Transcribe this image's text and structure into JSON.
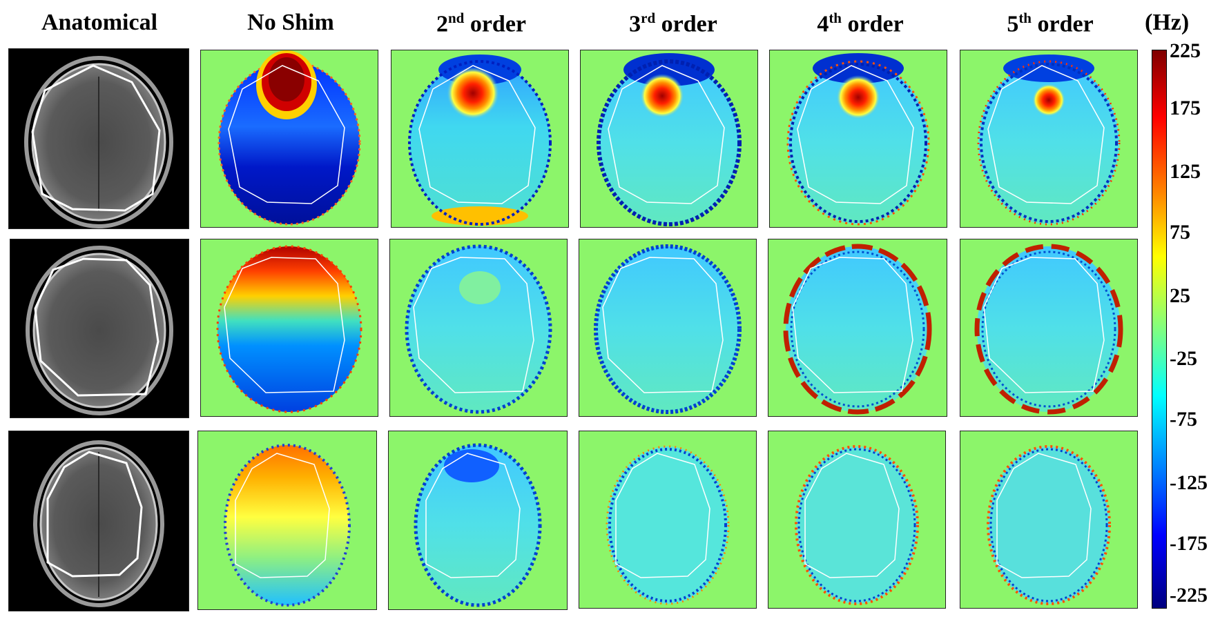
{
  "columns": [
    {
      "key": "anatomical",
      "title": "Anatomical",
      "sup": "",
      "after": ""
    },
    {
      "key": "no_shim",
      "title": "No Shim",
      "sup": "",
      "after": ""
    },
    {
      "key": "order2",
      "title": "2",
      "sup": "nd",
      "after": " order"
    },
    {
      "key": "order3",
      "title": "3",
      "sup": "rd",
      "after": " order"
    },
    {
      "key": "order4",
      "title": "4",
      "sup": "th",
      "after": " order"
    },
    {
      "key": "order5",
      "title": "5",
      "sup": "th",
      "after": " order"
    }
  ],
  "colorbar": {
    "unit": "(Hz)",
    "ticks": [
      "225",
      "175",
      "125",
      "75",
      "25",
      "-25",
      "-75",
      "-125",
      "-175",
      "-225"
    ],
    "colormap": [
      "#7f0000",
      "#ff0000",
      "#ff8000",
      "#ffff00",
      "#80ff80",
      "#00ffff",
      "#0080ff",
      "#0000ff",
      "#00007f"
    ]
  },
  "colors": {
    "background_field": "#8cf56a",
    "outline": "#ffffff",
    "anatomical_bg": "#000000"
  }
}
